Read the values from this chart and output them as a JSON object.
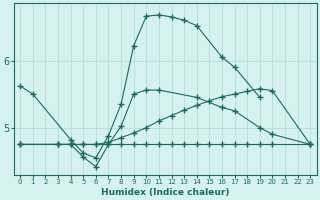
{
  "xlabel": "Humidex (Indice chaleur)",
  "background_color": "#d6f2ee",
  "grid_color": "#b8ddd8",
  "line_color": "#1a6b5e",
  "xlim": [
    -0.5,
    23.5
  ],
  "ylim": [
    4.3,
    6.85
  ],
  "yticks": [
    5,
    6
  ],
  "xticks": [
    0,
    1,
    2,
    3,
    4,
    5,
    6,
    7,
    8,
    9,
    10,
    11,
    12,
    13,
    14,
    15,
    16,
    17,
    18,
    19,
    20,
    21,
    22,
    23
  ],
  "series": [
    {
      "x": [
        0,
        1,
        4,
        5,
        6,
        7,
        8,
        9,
        10,
        11,
        12,
        13,
        14,
        16,
        17,
        19
      ],
      "y": [
        5.62,
        5.5,
        4.82,
        4.62,
        4.55,
        4.88,
        5.35,
        6.22,
        6.66,
        6.68,
        6.65,
        6.6,
        6.52,
        6.05,
        5.9,
        5.45
      ]
    },
    {
      "x": [
        0,
        3,
        4,
        5,
        6,
        7,
        8,
        9,
        10,
        11,
        12,
        13,
        14,
        15,
        16,
        17,
        18,
        19,
        20,
        23
      ],
      "y": [
        4.75,
        4.75,
        4.75,
        4.75,
        4.75,
        4.78,
        4.85,
        4.92,
        5.0,
        5.1,
        5.18,
        5.26,
        5.33,
        5.4,
        5.46,
        5.5,
        5.54,
        5.58,
        5.55,
        4.75
      ]
    },
    {
      "x": [
        0,
        3,
        4,
        5,
        6,
        7,
        8,
        9,
        10,
        11,
        12,
        13,
        14,
        15,
        16,
        17,
        18,
        19,
        20,
        23
      ],
      "y": [
        4.75,
        4.75,
        4.75,
        4.75,
        4.75,
        4.75,
        4.75,
        4.75,
        4.75,
        4.75,
        4.75,
        4.75,
        4.75,
        4.75,
        4.75,
        4.75,
        4.75,
        4.75,
        4.75,
        4.75
      ]
    },
    {
      "x": [
        0,
        3,
        4,
        5,
        6,
        7,
        8,
        9,
        10,
        11,
        14,
        16,
        17,
        19,
        20,
        23
      ],
      "y": [
        4.75,
        4.75,
        4.75,
        4.56,
        4.42,
        4.75,
        5.02,
        5.5,
        5.56,
        5.56,
        5.45,
        5.3,
        5.25,
        5.0,
        4.9,
        4.75
      ]
    }
  ]
}
